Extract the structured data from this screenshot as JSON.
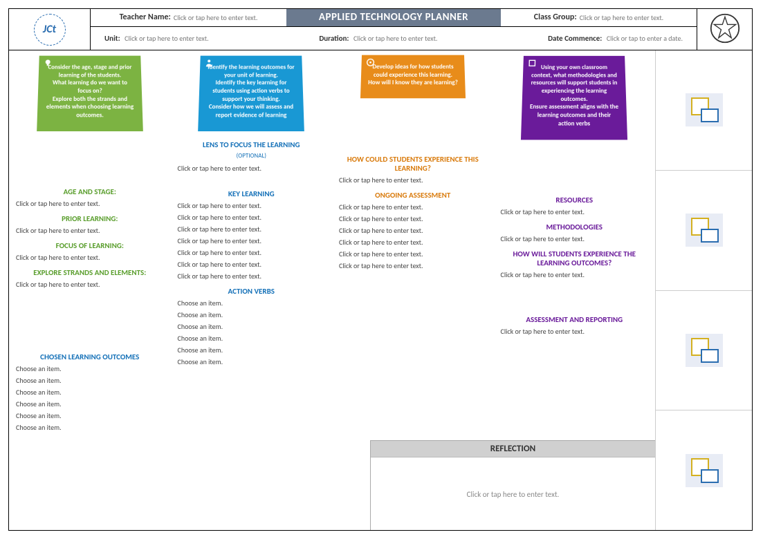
{
  "colors": {
    "header_banner": "#6b7a8f",
    "green": "#7cb342",
    "blue": "#1998d4",
    "orange": "#e88c1a",
    "purple": "#6a1b9a",
    "green_text": "#5a9e2d",
    "blue_text": "#1571b8",
    "orange_text": "#d97b0d",
    "purple_text": "#6a1b9a",
    "reflection_bg": "#d0d0d0"
  },
  "header": {
    "banner": "APPLIED TECHNOLOGY PLANNER",
    "teacher_label": "Teacher Name:",
    "teacher_ph": "Click or tap here to enter text.",
    "class_label": "Class Group:",
    "class_ph": "Click or tap here to enter text.",
    "unit_label": "Unit:",
    "unit_ph": "Click or tap here to enter text.",
    "duration_label": "Duration:",
    "duration_ph": "Click or tap here to enter text.",
    "date_label": "Date Commence:",
    "date_ph": "Click or tap to enter a date."
  },
  "cards": {
    "green": "Consider the age, stage and prior learning of the students.\nWhat learning do we want to focus on?\nExplore both the strands and elements when choosing learning outcomes.",
    "blue": "Identify the learning outcomes for your unit of learning.\nIdentify the key learning for students using action verbs to support your thinking.\nConsider how we will assess and report evidence of learning",
    "orange": "Develop ideas for how students could experience this learning.\nHow will I know they are learning?",
    "purple": "Using your own classroom context, what methodologies and resources will support students in experiencing the learning outcomes.\nEnsure assessment aligns with the learning outcomes and their action verbs"
  },
  "col1": {
    "age_title": "AGE AND STAGE:",
    "prior_title": "PRIOR LEARNING:",
    "focus_title": "FOCUS OF LEARNING:",
    "strands_title": "EXPLORE STRANDS AND ELEMENTS:",
    "outcomes_title": "CHOSEN LEARNING OUTCOMES",
    "ph": "Click or tap here to enter text.",
    "choose": "Choose an item.",
    "outcome_count": 6
  },
  "col2": {
    "lens_title": "LENS TO FOCUS THE LEARNING",
    "lens_sub": "(OPTIONAL)",
    "key_title": "KEY LEARNING",
    "verbs_title": "ACTION VERBS",
    "ph": "Click or tap here to enter text.",
    "choose": "Choose an item.",
    "key_count": 7,
    "verb_count": 6
  },
  "col3": {
    "exp_title": "HOW COULD STUDENTS EXPERIENCE THIS LEARNING?",
    "assess_title": "ONGOING ASSESSMENT",
    "ph": "Click or tap here to enter text.",
    "assess_count": 6
  },
  "col4": {
    "res_title": "RESOURCES",
    "meth_title": "METHODOLOGIES",
    "how_title": "HOW WILL STUDENTS EXPERIENCE THE LEARNING OUTCOMES?",
    "report_title": "ASSESSMENT AND REPORTING",
    "ph": "Click or tap here to enter text."
  },
  "reflection": {
    "title": "REFLECTION",
    "ph": "Click or tap here to enter text."
  },
  "side_images": 4
}
